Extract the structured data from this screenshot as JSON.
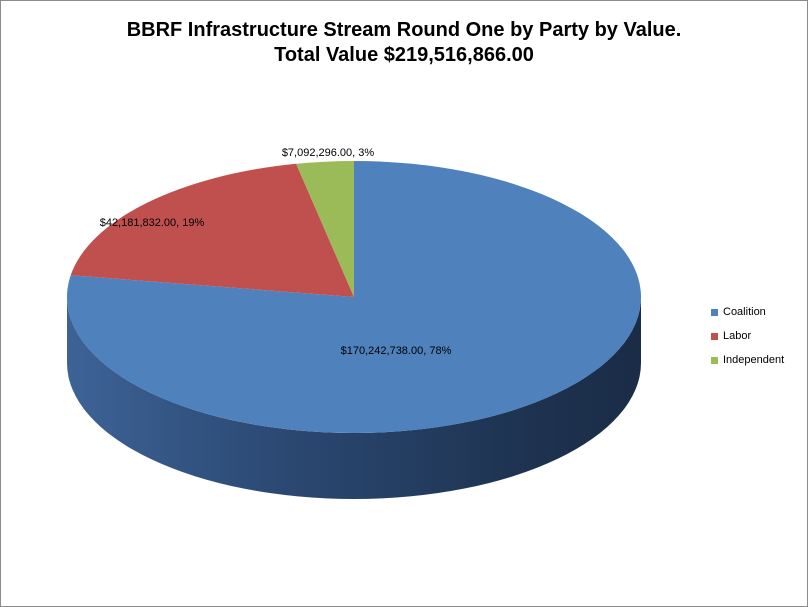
{
  "chart_data": {
    "type": "pie",
    "title": "BBRF Infrastructure Stream Round One by Party by Value.",
    "subtitle": "Total Value $219,516,866.00",
    "categories": [
      "Coalition",
      "Labor",
      "Independent"
    ],
    "values": [
      170242738.0,
      42181832.0,
      7092296.0
    ],
    "percentages": [
      78,
      19,
      3
    ],
    "data_labels": [
      "$170,242,738.00, 78%",
      "$42,181,832.00, 19%",
      "$7,092,296.00, 3%"
    ],
    "colors": [
      "#4F81BD",
      "#C0504D",
      "#9BBB59"
    ],
    "legend_position": "right",
    "style": "3d"
  }
}
